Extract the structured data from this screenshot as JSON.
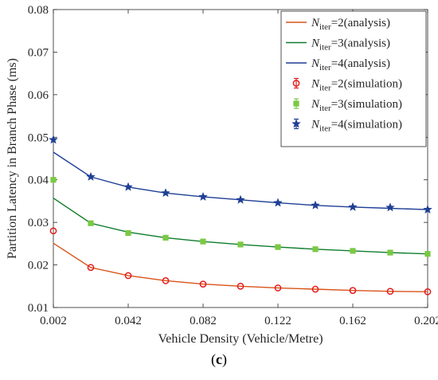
{
  "caption": {
    "open": "(",
    "letter": "c",
    "close": ")"
  },
  "chart_data": {
    "type": "line",
    "xlabel": "Vehicle Density (Vehicle/Metre)",
    "ylabel": "Partition Latency in Branch Phase (ms)",
    "xlim": [
      0.002,
      0.202
    ],
    "ylim": [
      0.01,
      0.08
    ],
    "xticks": [
      "0.002",
      "0.042",
      "0.082",
      "0.122",
      "0.162",
      "0.202"
    ],
    "yticks": [
      "0.01",
      "0.02",
      "0.03",
      "0.04",
      "0.05",
      "0.06",
      "0.07",
      "0.08"
    ],
    "grid": false,
    "legend_position": "top-right",
    "x": [
      0.002,
      0.022,
      0.042,
      0.062,
      0.082,
      0.102,
      0.122,
      0.142,
      0.162,
      0.182,
      0.202
    ],
    "series": [
      {
        "legend_main": "N",
        "legend_sub": "iter",
        "legend_rest": "=2(analysis)",
        "kind": "line",
        "color": "#d95319",
        "values": [
          0.0251,
          0.0194,
          0.0175,
          0.0163,
          0.0155,
          0.015,
          0.0146,
          0.0143,
          0.014,
          0.0138,
          0.0137
        ]
      },
      {
        "legend_main": "N",
        "legend_sub": "iter",
        "legend_rest": "=3(analysis)",
        "kind": "line",
        "color": "#0f7d2c",
        "values": [
          0.0357,
          0.0298,
          0.0277,
          0.0264,
          0.0255,
          0.0248,
          0.0242,
          0.0237,
          0.0233,
          0.0229,
          0.0226
        ]
      },
      {
        "legend_main": "N",
        "legend_sub": "iter",
        "legend_rest": "=4(analysis)",
        "kind": "line",
        "color": "#1f3f94",
        "values": [
          0.0465,
          0.0407,
          0.0383,
          0.0369,
          0.036,
          0.0353,
          0.0346,
          0.034,
          0.0336,
          0.0333,
          0.033
        ]
      },
      {
        "legend_main": "N",
        "legend_sub": "iter",
        "legend_rest": "=2(simulation)",
        "kind": "marker",
        "marker": "circle",
        "color": "#e41a1c",
        "values": [
          0.028,
          0.0194,
          0.0175,
          0.0163,
          0.0155,
          0.015,
          0.0146,
          0.0143,
          0.014,
          0.0138,
          0.0137
        ]
      },
      {
        "legend_main": "N",
        "legend_sub": "iter",
        "legend_rest": "=3(simulation)",
        "kind": "marker",
        "marker": "square",
        "color": "#7ac943",
        "values": [
          0.04,
          0.0298,
          0.0275,
          0.0264,
          0.0255,
          0.0248,
          0.0242,
          0.0237,
          0.0233,
          0.0229,
          0.0226
        ]
      },
      {
        "legend_main": "N",
        "legend_sub": "iter",
        "legend_rest": "=4(simulation)",
        "kind": "marker",
        "marker": "star",
        "color": "#1f3f94",
        "values": [
          0.0494,
          0.0407,
          0.0383,
          0.0369,
          0.036,
          0.0353,
          0.0346,
          0.034,
          0.0336,
          0.0335,
          0.033
        ]
      }
    ]
  }
}
